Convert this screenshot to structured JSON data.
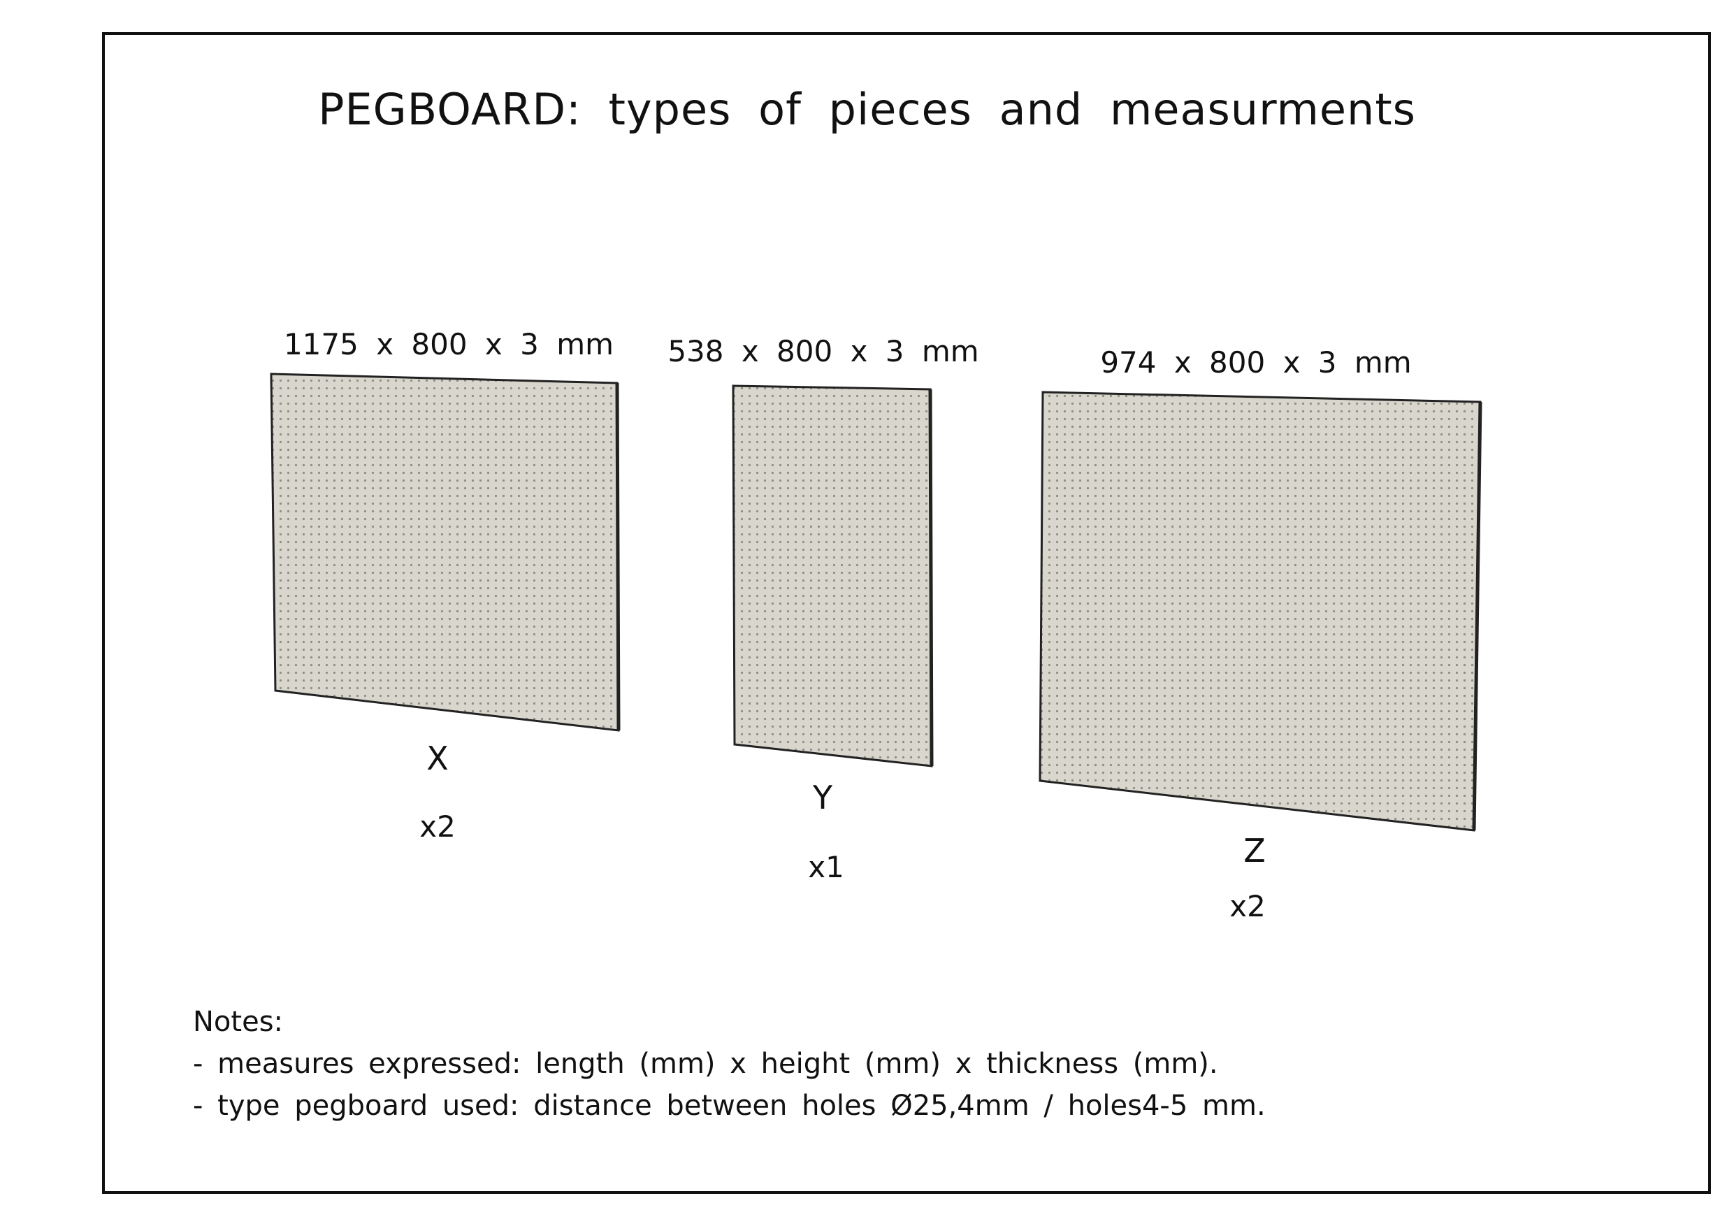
{
  "title": "PEGBOARD: types of pieces and measurments",
  "pieces": [
    {
      "dimensions": "1175 x 800 x 3 mm",
      "code": "X",
      "quantity": "x2"
    },
    {
      "dimensions": "538 x 800 x 3 mm",
      "code": "Y",
      "quantity": "x1"
    },
    {
      "dimensions": "974 x 800 x 3 mm",
      "code": "Z",
      "quantity": "x2"
    }
  ],
  "notes": {
    "heading": "Notes:",
    "lines": [
      "- measures expressed: length (mm) x height (mm) x thickness (mm).",
      "- type pegboard used: distance between holes Ø25,4mm / holes4-5 mm."
    ]
  },
  "colors": {
    "board_fill": "#d9d7cd",
    "hole": "#8f8d85",
    "edge": "#222222"
  }
}
